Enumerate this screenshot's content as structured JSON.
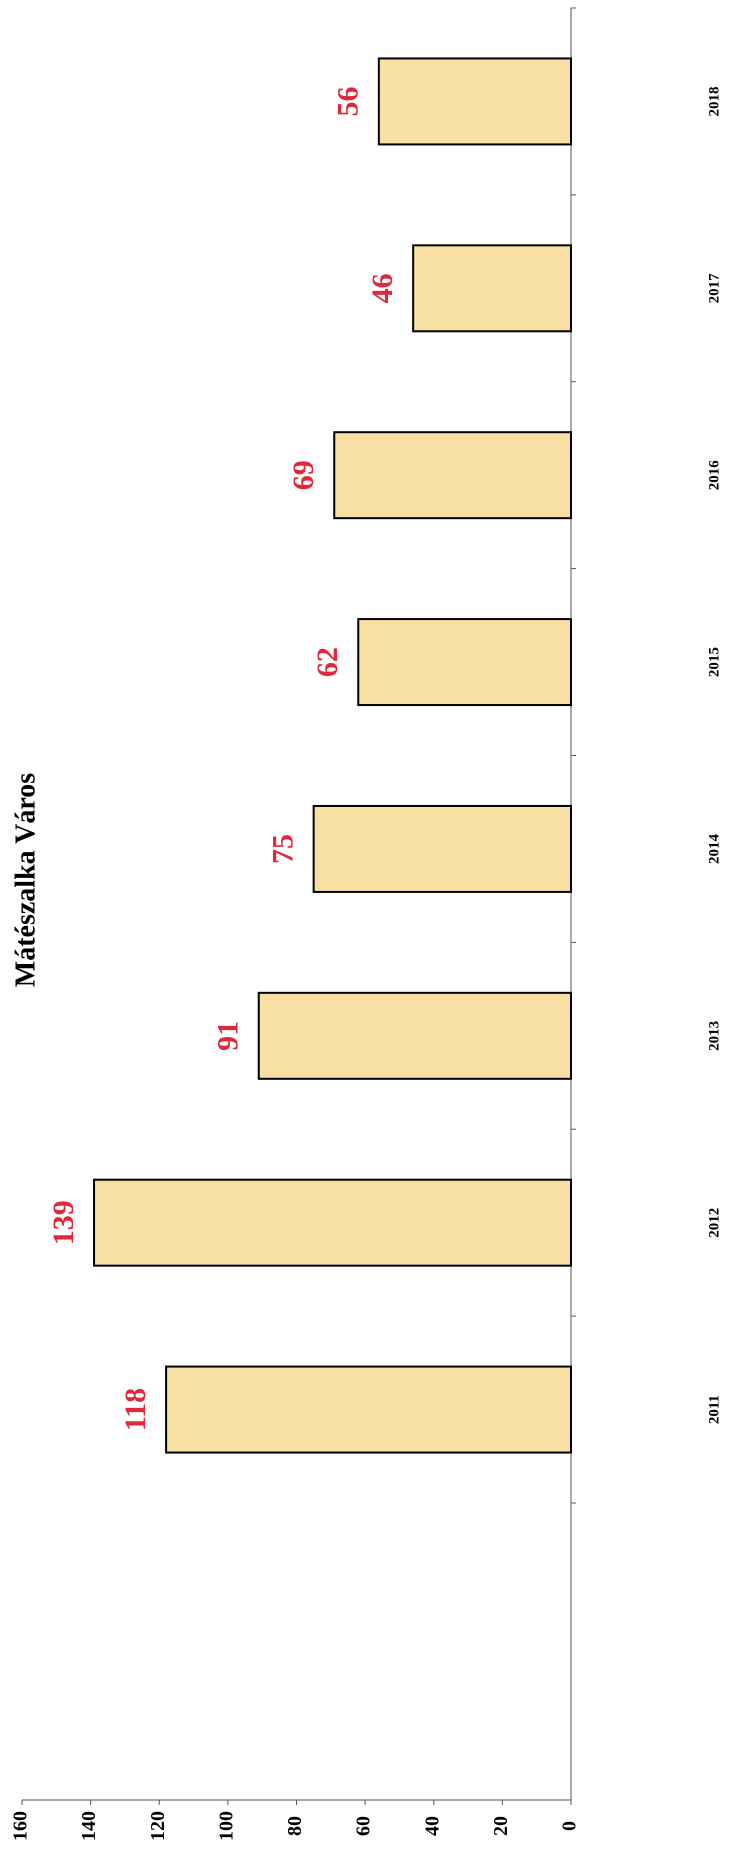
{
  "chart_data": {
    "type": "bar",
    "title": "Mátészalka Város",
    "categories": [
      "2011",
      "2012",
      "2013",
      "2014",
      "2015",
      "2016",
      "2017",
      "2018"
    ],
    "values": [
      118,
      139,
      91,
      75,
      62,
      69,
      46,
      56
    ],
    "color": "#f8e0a4",
    "label_color": "#e0283a",
    "ylim": [
      0,
      160
    ],
    "yticks": [
      0,
      20,
      40,
      60,
      80,
      100,
      120,
      140,
      160
    ]
  }
}
